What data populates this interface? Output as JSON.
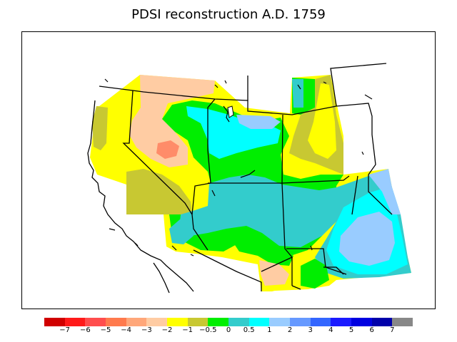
{
  "title": "PDSI reconstruction A.D. 1759",
  "legend": {
    "colors": [
      "#d00000",
      "#ff1a1a",
      "#ff4d4d",
      "#ff7a4d",
      "#ffa77a",
      "#ffcca3",
      "#ffff00",
      "#c8c832",
      "#00ee00",
      "#33cccc",
      "#00ffff",
      "#99ccff",
      "#6699ff",
      "#3366ff",
      "#1a1aff",
      "#0000e0",
      "#0000aa",
      "#888888"
    ],
    "ticks": [
      "−7",
      "−6",
      "−5",
      "−4",
      "−3",
      "−2",
      "−1",
      "−0.5",
      "0",
      "0.5",
      "1",
      "2",
      "3",
      "4",
      "5",
      "6",
      "7"
    ]
  },
  "map_colors": {
    "background": "#ffffff",
    "yellow": "#ffff00",
    "olive": "#c8c832",
    "peach": "#ffcca3",
    "salmon": "#ff8c69",
    "green": "#00ee00",
    "teal": "#33cccc",
    "cyan": "#00ffff",
    "light_blue": "#99ccff",
    "water": "#ffffff",
    "borders": "#000000"
  }
}
